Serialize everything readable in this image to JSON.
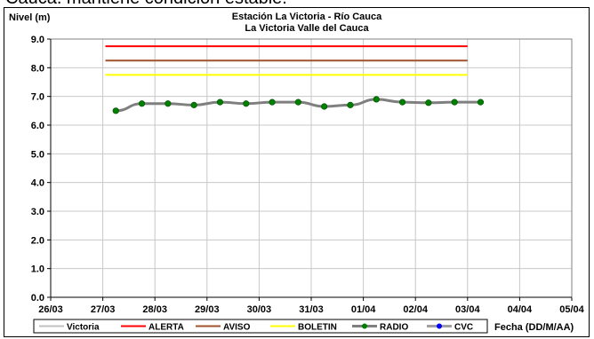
{
  "caption": "Cauca. mantiene condición estable.",
  "chart_data": {
    "type": "line",
    "title": "Estación La Victoria - Río Cauca",
    "subtitle": "La Victoria Valle del Cauca",
    "ylabel": "Nivel (m)",
    "xlabel": "Fecha (DD/M/AA)",
    "ylim": [
      0,
      9
    ],
    "yticks": [
      "0.0",
      "1.0",
      "2.0",
      "3.0",
      "4.0",
      "5.0",
      "6.0",
      "7.0",
      "8.0",
      "9.0"
    ],
    "xticks": [
      "26/03",
      "27/03",
      "28/03",
      "29/03",
      "30/03",
      "31/03",
      "01/04",
      "02/04",
      "03/04",
      "04/04",
      "05/04"
    ],
    "grid": true,
    "legend_position": "bottom",
    "thresholds": [
      {
        "name": "ALERTA",
        "value": 8.75,
        "x_start": 27.05,
        "x_end": 34.0,
        "color": "#ff0000"
      },
      {
        "name": "AVISO",
        "value": 8.25,
        "x_start": 27.05,
        "x_end": 34.0,
        "color": "#a0522d"
      },
      {
        "name": "BOLETIN",
        "value": 7.75,
        "x_start": 27.05,
        "x_end": 34.0,
        "color": "#ffff00"
      }
    ],
    "series": [
      {
        "name": "RADIO",
        "color": "#7f7f7f",
        "marker_color": "#008000",
        "x": [
          27.25,
          27.75,
          28.25,
          28.75,
          29.25,
          29.75,
          30.25,
          30.75,
          31.25,
          31.75,
          32.25,
          32.75,
          33.25,
          33.75,
          34.25
        ],
        "y": [
          6.5,
          6.75,
          6.75,
          6.7,
          6.8,
          6.75,
          6.8,
          6.8,
          6.65,
          6.7,
          6.9,
          6.8,
          6.78,
          6.8,
          6.8
        ]
      }
    ],
    "legend": [
      {
        "label": "Victoria",
        "color": "#c0c0c0",
        "marker": "none"
      },
      {
        "label": "ALERTA",
        "color": "#ff0000",
        "marker": "none"
      },
      {
        "label": "AVISO",
        "color": "#a0522d",
        "marker": "none"
      },
      {
        "label": "BOLETIN",
        "color": "#ffff00",
        "marker": "none"
      },
      {
        "label": "RADIO",
        "color": "#7f7f7f",
        "marker": "#008000"
      },
      {
        "label": "CVC",
        "color": "#a0a0a0",
        "marker": "#0000ff"
      }
    ]
  }
}
